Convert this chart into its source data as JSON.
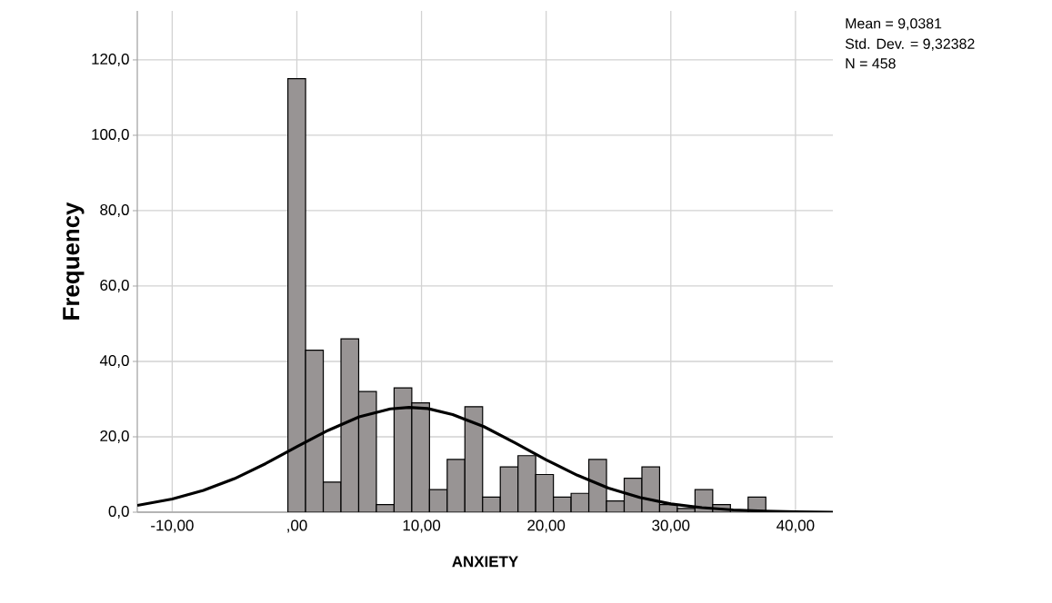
{
  "chart_data": {
    "type": "histogram",
    "xlabel": "ANXIETY",
    "ylabel": "Frequency",
    "annotations": [
      "Mean = 9,0381",
      "Std. Dev. = 9,32382",
      "N = 458"
    ],
    "series": [
      {
        "color": "#989494",
        "bins": [
          -0.72,
          0.7,
          2.12,
          3.54,
          4.96,
          6.38,
          7.8,
          9.22,
          10.64,
          12.06,
          13.48,
          14.9,
          16.32,
          17.74,
          19.16,
          20.58,
          22.0,
          23.42,
          24.84,
          26.26,
          27.68,
          29.1,
          30.52,
          31.94,
          33.36,
          34.78,
          36.2,
          37.62
        ],
        "values": [
          115,
          43,
          8,
          46,
          32,
          2,
          33,
          29,
          6,
          14,
          28,
          4,
          12,
          15,
          10,
          4,
          5,
          14,
          3,
          9,
          12,
          2,
          1,
          6,
          2,
          0,
          4
        ]
      },
      {
        "type": "line",
        "color": "#000000",
        "x": [
          -12.8,
          -10,
          -7.5,
          -5,
          -2.5,
          0,
          2.5,
          5,
          7.5,
          9,
          10.5,
          12.5,
          15,
          17.5,
          20,
          22.5,
          25,
          27.5,
          30,
          32.5,
          35,
          37.5,
          40,
          43
        ],
        "values": [
          1.8,
          3.5,
          5.8,
          8.9,
          12.9,
          17.4,
          21.7,
          25.3,
          27.4,
          27.8,
          27.5,
          25.9,
          22.7,
          18.4,
          13.9,
          9.8,
          6.4,
          3.9,
          2.2,
          1.2,
          0.6,
          0.3,
          0.1,
          0.0
        ]
      }
    ],
    "xlim": [
      -12.8,
      43
    ],
    "ylim": [
      0,
      133
    ],
    "xticks": [
      {
        "value": -10,
        "label": "-10,00"
      },
      {
        "value": 0,
        "label": ",00"
      },
      {
        "value": 10,
        "label": "10,00"
      },
      {
        "value": 20,
        "label": "20,00"
      },
      {
        "value": 30,
        "label": "30,00"
      },
      {
        "value": 40,
        "label": "40,00"
      }
    ],
    "yticks": [
      {
        "value": 0,
        "label": "0,0"
      },
      {
        "value": 20,
        "label": "20,0"
      },
      {
        "value": 40,
        "label": "40,0"
      },
      {
        "value": 60,
        "label": "60,0"
      },
      {
        "value": 80,
        "label": "80,0"
      },
      {
        "value": 100,
        "label": "100,0"
      },
      {
        "value": 120,
        "label": "120,0"
      }
    ],
    "grid": true
  }
}
